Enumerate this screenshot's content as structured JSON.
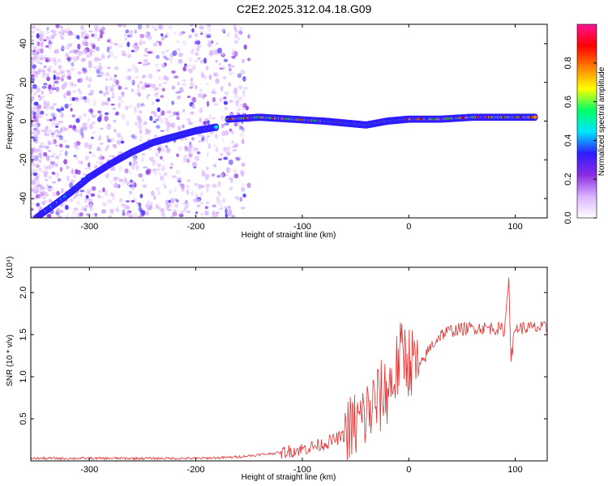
{
  "title": "C2E2.2025.312.04.18.G09",
  "chart_data": [
    {
      "type": "heatmap",
      "xlabel": "Height of straight line (km)",
      "ylabel": "Frequency (Hz)",
      "xlim": [
        -355,
        130
      ],
      "ylim": [
        -50,
        50
      ],
      "x_ticks": [
        -300,
        -200,
        -100,
        0,
        100
      ],
      "y_ticks": [
        -40,
        -20,
        0,
        20,
        40
      ],
      "grid": false,
      "colorbar": {
        "label": "Normalized spectral amplitude",
        "ticks": [
          "0.0",
          "0.2",
          "0.4",
          "0.6",
          "0.8"
        ],
        "range": [
          0,
          1
        ],
        "colors": [
          "#ffffff",
          "#d9b3ff",
          "#8a2be2",
          "#2e1cff",
          "#00e5ff",
          "#00ff66",
          "#ffff00",
          "#ff8000",
          "#ff0000",
          "#ff1493"
        ]
      },
      "features": [
        {
          "name": "carrier",
          "x": [
            -170,
            -140,
            -110,
            -80,
            -60,
            -40,
            -20,
            0,
            30,
            60,
            90,
            120
          ],
          "y": [
            1,
            2,
            1,
            0,
            -1,
            -2,
            0,
            1,
            1,
            2,
            2,
            2
          ],
          "peak_amplitude": 0.9
        },
        {
          "name": "chirp",
          "x": [
            -350,
            -320,
            -300,
            -280,
            -260,
            -240,
            -220,
            -200,
            -180
          ],
          "y": [
            -50,
            -38,
            -29,
            -22,
            -16,
            -11,
            -8,
            -5,
            -3
          ],
          "peak_amplitude": 0.45
        }
      ]
    },
    {
      "type": "line",
      "xlabel": "Height of straight line (km)",
      "ylabel": "SNR (10 * v/v)",
      "y_scale_label": "(x10⁴)",
      "xlim": [
        -355,
        130
      ],
      "ylim": [
        0,
        2.3
      ],
      "x_ticks": [
        -300,
        -200,
        -100,
        0,
        100
      ],
      "y_ticks": [
        "0.5",
        "1.0",
        "1.5",
        "2.0"
      ],
      "grid": false,
      "series_color": "#e53030",
      "x": [
        -355,
        -300,
        -250,
        -200,
        -170,
        -150,
        -120,
        -100,
        -80,
        -60,
        -50,
        -40,
        -30,
        -20,
        -15,
        -10,
        -5,
        0,
        10,
        20,
        30,
        40,
        60,
        80,
        90,
        94,
        96,
        100,
        110,
        130
      ],
      "y": [
        0.03,
        0.03,
        0.03,
        0.03,
        0.04,
        0.06,
        0.1,
        0.14,
        0.2,
        0.3,
        0.42,
        0.55,
        0.7,
        0.85,
        0.95,
        1.15,
        1.3,
        1.2,
        1.1,
        1.35,
        1.5,
        1.55,
        1.58,
        1.58,
        1.55,
        2.2,
        1.2,
        1.58,
        1.58,
        1.58
      ]
    }
  ]
}
